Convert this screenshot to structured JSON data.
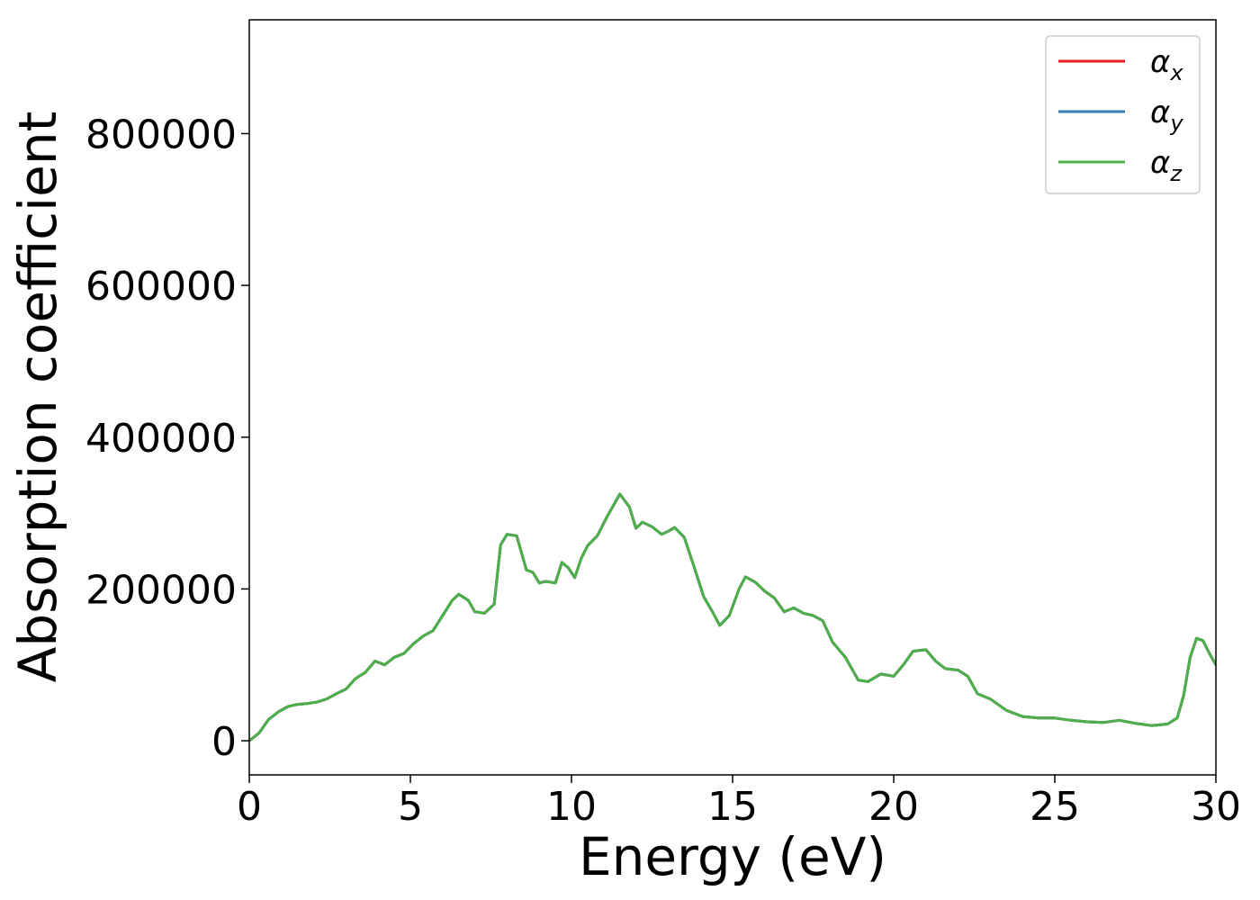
{
  "chart_data": {
    "type": "line",
    "xlabel": "Energy (eV)",
    "ylabel": "Absorption coefficient",
    "xlim": [
      0,
      30
    ],
    "ylim": [
      -45000,
      950000
    ],
    "xticks": [
      0,
      5,
      10,
      15,
      20,
      25,
      30
    ],
    "yticks": [
      0,
      200000,
      400000,
      600000,
      800000
    ],
    "grid": false,
    "legend_position": "top-right",
    "x": [
      0,
      0.3,
      0.6,
      0.9,
      1.2,
      1.5,
      1.8,
      2.1,
      2.4,
      2.7,
      3.0,
      3.3,
      3.6,
      3.9,
      4.2,
      4.5,
      4.8,
      5.1,
      5.4,
      5.7,
      6.0,
      6.3,
      6.5,
      6.8,
      7.0,
      7.3,
      7.6,
      7.8,
      8.0,
      8.3,
      8.6,
      8.8,
      9.0,
      9.2,
      9.5,
      9.7,
      9.9,
      10.1,
      10.3,
      10.5,
      10.8,
      11.1,
      11.5,
      11.8,
      12.0,
      12.2,
      12.5,
      12.8,
      13.0,
      13.2,
      13.5,
      13.8,
      14.1,
      14.4,
      14.6,
      14.9,
      15.2,
      15.4,
      15.7,
      16.0,
      16.3,
      16.6,
      16.9,
      17.2,
      17.5,
      17.8,
      18.1,
      18.5,
      18.9,
      19.2,
      19.6,
      20.0,
      20.3,
      20.6,
      21.0,
      21.3,
      21.6,
      22.0,
      22.3,
      22.6,
      23.0,
      23.5,
      24.0,
      24.5,
      25.0,
      25.5,
      26.0,
      26.5,
      27.0,
      27.5,
      28.0,
      28.5,
      28.8,
      29.0,
      29.2,
      29.4,
      29.6,
      29.8,
      30.0
    ],
    "series": [
      {
        "name": "α_x",
        "color": "#e41a1c",
        "values": [
          0,
          10000,
          28000,
          38000,
          45000,
          48000,
          49000,
          51000,
          55000,
          62000,
          68000,
          82000,
          90000,
          105000,
          100000,
          110000,
          115000,
          128000,
          138000,
          145000,
          165000,
          185000,
          193000,
          185000,
          170000,
          168000,
          180000,
          258000,
          272000,
          270000,
          225000,
          222000,
          208000,
          210000,
          208000,
          235000,
          228000,
          215000,
          240000,
          257000,
          270000,
          295000,
          325000,
          308000,
          280000,
          288000,
          282000,
          272000,
          276000,
          281000,
          268000,
          230000,
          190000,
          168000,
          152000,
          165000,
          200000,
          216000,
          209000,
          197000,
          188000,
          170000,
          175000,
          168000,
          165000,
          158000,
          130000,
          110000,
          80000,
          78000,
          88000,
          85000,
          100000,
          118000,
          120000,
          105000,
          95000,
          93000,
          85000,
          62000,
          55000,
          40000,
          32000,
          30000,
          30000,
          27000,
          25000,
          24000,
          27000,
          23000,
          20000,
          22000,
          30000,
          60000,
          110000,
          135000,
          132000,
          115000,
          100000
        ]
      },
      {
        "name": "α_y",
        "color": "#377eb8",
        "values": [
          0,
          10000,
          28000,
          38000,
          45000,
          48000,
          49000,
          51000,
          55000,
          62000,
          68000,
          82000,
          90000,
          105000,
          100000,
          110000,
          115000,
          128000,
          138000,
          145000,
          165000,
          185000,
          193000,
          185000,
          170000,
          168000,
          180000,
          258000,
          272000,
          270000,
          225000,
          222000,
          208000,
          210000,
          208000,
          235000,
          228000,
          215000,
          240000,
          257000,
          270000,
          295000,
          325000,
          308000,
          280000,
          288000,
          282000,
          272000,
          276000,
          281000,
          268000,
          230000,
          190000,
          168000,
          152000,
          165000,
          200000,
          216000,
          209000,
          197000,
          188000,
          170000,
          175000,
          168000,
          165000,
          158000,
          130000,
          110000,
          80000,
          78000,
          88000,
          85000,
          100000,
          118000,
          120000,
          105000,
          95000,
          93000,
          85000,
          62000,
          55000,
          40000,
          32000,
          30000,
          30000,
          27000,
          25000,
          24000,
          27000,
          23000,
          20000,
          22000,
          30000,
          60000,
          110000,
          135000,
          132000,
          115000,
          100000
        ]
      },
      {
        "name": "α_z",
        "color": "#4daf4a",
        "values": [
          0,
          10000,
          28000,
          38000,
          45000,
          48000,
          49000,
          51000,
          55000,
          62000,
          68000,
          82000,
          90000,
          105000,
          100000,
          110000,
          115000,
          128000,
          138000,
          145000,
          165000,
          185000,
          193000,
          185000,
          170000,
          168000,
          180000,
          258000,
          272000,
          270000,
          225000,
          222000,
          208000,
          210000,
          208000,
          235000,
          228000,
          215000,
          240000,
          257000,
          270000,
          295000,
          325000,
          308000,
          280000,
          288000,
          282000,
          272000,
          276000,
          281000,
          268000,
          230000,
          190000,
          168000,
          152000,
          165000,
          200000,
          216000,
          209000,
          197000,
          188000,
          170000,
          175000,
          168000,
          165000,
          158000,
          130000,
          110000,
          80000,
          78000,
          88000,
          85000,
          100000,
          118000,
          120000,
          105000,
          95000,
          93000,
          85000,
          62000,
          55000,
          40000,
          32000,
          30000,
          30000,
          27000,
          25000,
          24000,
          27000,
          23000,
          20000,
          22000,
          30000,
          60000,
          110000,
          135000,
          132000,
          115000,
          100000
        ]
      }
    ]
  }
}
